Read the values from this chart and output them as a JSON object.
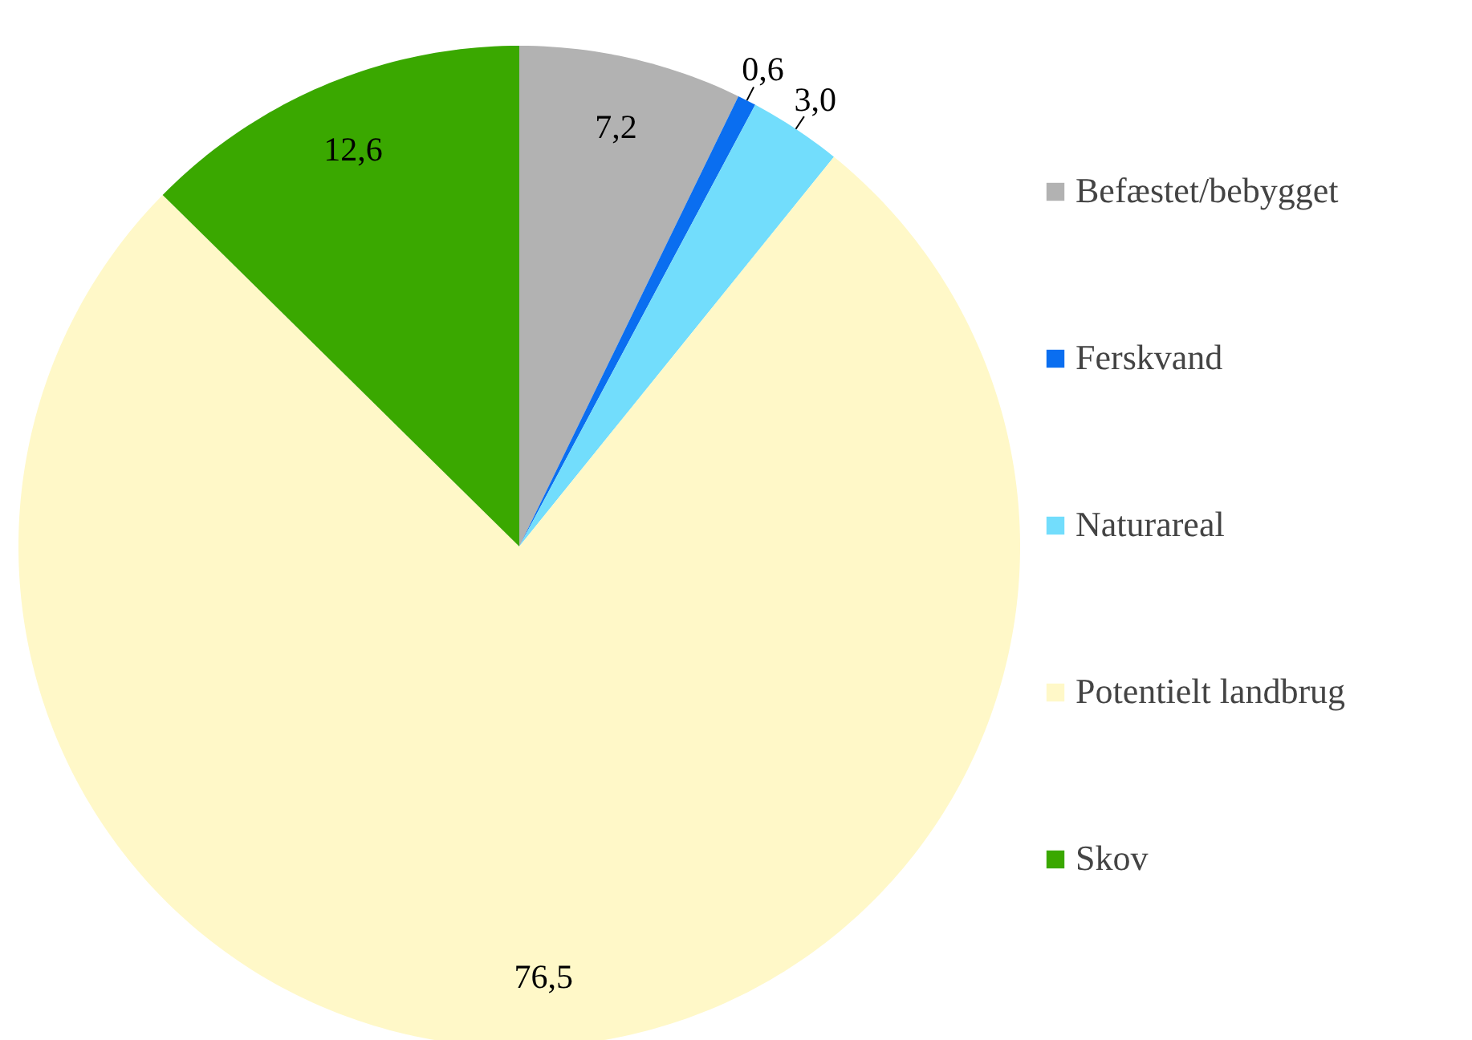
{
  "chart_data": {
    "type": "pie",
    "categories": [
      "Befæstet/bebygget",
      "Ferskvand",
      "Naturareal",
      "Potentielt landbrug",
      "Skov"
    ],
    "values": [
      7.2,
      0.6,
      3.0,
      76.5,
      12.6
    ],
    "colors": [
      "#b2b2b2",
      "#0a6ef0",
      "#72ddfc",
      "#fff8c8",
      "#3aa800"
    ],
    "value_labels": [
      "7,2",
      "0,6",
      "3,0",
      "76,5",
      "12,6"
    ],
    "legend": "right"
  }
}
